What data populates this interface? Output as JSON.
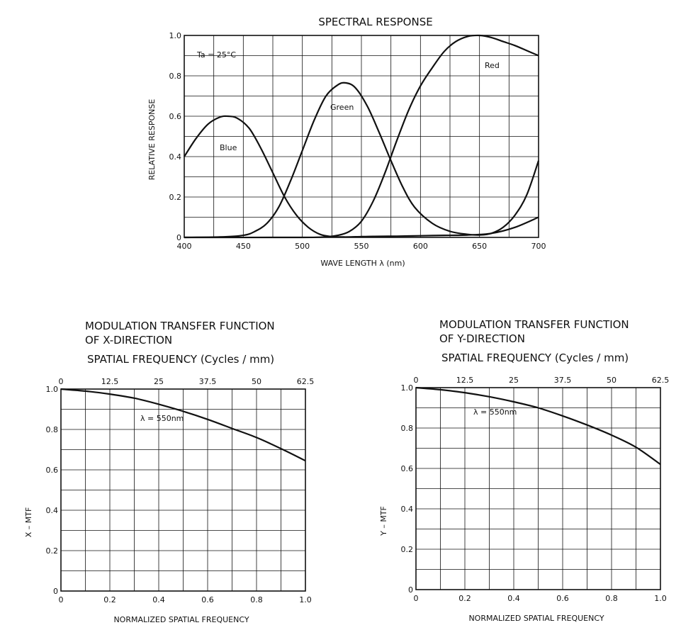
{
  "chart_data": [
    {
      "type": "line",
      "title": "SPECTRAL RESPONSE",
      "xlabel": "WAVE LENGTH  λ  (nm)",
      "ylabel": "RELATIVE RESPONSE",
      "xlim": [
        400,
        700
      ],
      "ylim": [
        0,
        1.0
      ],
      "x_ticks": [
        "400",
        "450",
        "500",
        "550",
        "600",
        "650",
        "700"
      ],
      "y_ticks": [
        "0",
        "0.2",
        "0.4",
        "0.6",
        "0.8",
        "1.0"
      ],
      "grid": true,
      "annotation": "Ta = 25°C",
      "series": [
        {
          "name": "Blue",
          "x": [
            400,
            410,
            420,
            430,
            437,
            445,
            455,
            465,
            475,
            485,
            495,
            505,
            515,
            525,
            535,
            545,
            560,
            580,
            600,
            620,
            640,
            660,
            680,
            700
          ],
          "y": [
            0.4,
            0.49,
            0.56,
            0.595,
            0.6,
            0.59,
            0.54,
            0.44,
            0.32,
            0.2,
            0.11,
            0.05,
            0.015,
            0.004,
            0.002,
            0.003,
            0.005,
            0.006,
            0.008,
            0.01,
            0.012,
            0.02,
            0.05,
            0.1
          ]
        },
        {
          "name": "Green",
          "x": [
            400,
            430,
            450,
            460,
            470,
            480,
            490,
            500,
            510,
            520,
            530,
            537,
            545,
            555,
            565,
            575,
            585,
            595,
            610,
            625,
            640,
            650,
            660,
            670,
            680,
            690,
            700
          ],
          "y": [
            0.0,
            0.002,
            0.01,
            0.03,
            0.07,
            0.15,
            0.28,
            0.43,
            0.58,
            0.7,
            0.755,
            0.765,
            0.74,
            0.65,
            0.52,
            0.38,
            0.25,
            0.15,
            0.07,
            0.03,
            0.015,
            0.012,
            0.02,
            0.05,
            0.11,
            0.21,
            0.38
          ]
        },
        {
          "name": "Red",
          "x": [
            400,
            500,
            520,
            530,
            540,
            550,
            560,
            570,
            580,
            590,
            600,
            610,
            620,
            630,
            640,
            650,
            660,
            670,
            680,
            690,
            700
          ],
          "y": [
            0.0,
            0.0,
            0.003,
            0.01,
            0.03,
            0.08,
            0.18,
            0.32,
            0.48,
            0.63,
            0.75,
            0.84,
            0.92,
            0.97,
            0.995,
            1.0,
            0.99,
            0.97,
            0.95,
            0.925,
            0.9
          ]
        }
      ]
    },
    {
      "type": "line",
      "title": "MODULATION TRANSFER FUNCTION OF X-DIRECTION",
      "title_lines": [
        "MODULATION TRANSFER FUNCTION",
        "OF X-DIRECTION"
      ],
      "top_axis_label": "SPATIAL FREQUENCY   (Cycles / mm)",
      "top_ticks": [
        "0",
        "12.5",
        "25",
        "37.5",
        "50",
        "62.5"
      ],
      "xlabel": "NORMALIZED SPATIAL FREQUENCY",
      "ylabel": "X – MTF",
      "xlim": [
        0,
        1.0
      ],
      "ylim": [
        0,
        1.0
      ],
      "x_ticks": [
        "0",
        "0.2",
        "0.4",
        "0.6",
        "0.8",
        "1.0"
      ],
      "y_ticks": [
        "0",
        "0.2",
        "0.4",
        "0.6",
        "0.8",
        "1.0"
      ],
      "grid": true,
      "annotation": "λ = 550nm",
      "series": [
        {
          "x": [
            0,
            0.1,
            0.2,
            0.3,
            0.4,
            0.5,
            0.6,
            0.7,
            0.8,
            0.9,
            1.0
          ],
          "y": [
            1.0,
            0.99,
            0.975,
            0.955,
            0.925,
            0.89,
            0.85,
            0.805,
            0.76,
            0.705,
            0.645
          ]
        }
      ]
    },
    {
      "type": "line",
      "title": "MODULATION TRANSFER FUNCTION OF Y-DIRECTION",
      "title_lines": [
        "MODULATION TRANSFER FUNCTION",
        "OF  Y-DIRECTION"
      ],
      "top_axis_label": "SPATIAL FREQUENCY   (Cycles / mm)",
      "top_ticks": [
        "0",
        "12.5",
        "25",
        "37.5",
        "50",
        "62.5"
      ],
      "xlabel": "NORMALIZED SPATIAL FREQUENCY",
      "ylabel": "Y – MTF",
      "xlim": [
        0,
        1.0
      ],
      "ylim": [
        0,
        1.0
      ],
      "x_ticks": [
        "0",
        "0.2",
        "0.4",
        "0.6",
        "0.8",
        "1.0"
      ],
      "y_ticks": [
        "0",
        "0.2",
        "0.4",
        "0.6",
        "0.8",
        "1.0"
      ],
      "grid": true,
      "annotation": "λ = 550nm",
      "series": [
        {
          "x": [
            0,
            0.1,
            0.2,
            0.3,
            0.4,
            0.5,
            0.6,
            0.7,
            0.8,
            0.9,
            1.0
          ],
          "y": [
            1.0,
            0.99,
            0.975,
            0.955,
            0.93,
            0.9,
            0.86,
            0.815,
            0.765,
            0.705,
            0.62
          ]
        }
      ]
    }
  ]
}
